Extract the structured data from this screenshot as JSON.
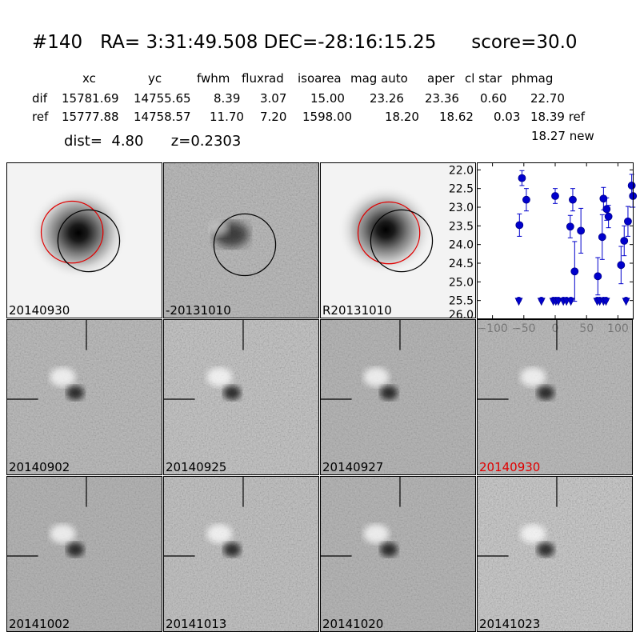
{
  "header": {
    "title": "#140   RA= 3:31:49.508 DEC=-28:16:15.25      score=30.0",
    "columns": [
      "xc",
      "yc",
      "fwhm",
      "fluxrad",
      "isoarea",
      "mag auto",
      "aper",
      "cl star",
      "phmag"
    ],
    "rows": [
      {
        "label": "dif",
        "values": [
          "15781.69",
          "14755.65",
          "8.39",
          "3.07",
          "15.00",
          "23.26",
          "23.36",
          "0.60",
          "22.70"
        ]
      },
      {
        "label": "ref",
        "values": [
          "15777.88",
          "14758.57",
          "11.70",
          "7.20",
          "1598.00",
          "18.20",
          "18.62",
          "0.03",
          "18.39 ref"
        ]
      }
    ],
    "new_mag": "18.27 new",
    "dist_line": "dist=  4.80      z=0.2303"
  },
  "panels": [
    {
      "label": "20140930",
      "type": "galaxy",
      "highlight": false
    },
    {
      "label": "-20131010",
      "type": "diff",
      "highlight": false
    },
    {
      "label": "R20131010",
      "type": "galaxy",
      "highlight": false
    },
    {
      "label": "20140902",
      "type": "stamp",
      "highlight": false
    },
    {
      "label": "20140925",
      "type": "stamp",
      "highlight": false
    },
    {
      "label": "20140927",
      "type": "stamp",
      "highlight": false
    },
    {
      "label": "20140930",
      "type": "stamp",
      "highlight": true
    },
    {
      "label": "20141002",
      "type": "stamp",
      "highlight": false
    },
    {
      "label": "20141013",
      "type": "stamp",
      "highlight": false
    },
    {
      "label": "20141020",
      "type": "stamp",
      "highlight": false
    },
    {
      "label": "20141023",
      "type": "stamp",
      "highlight": false
    }
  ],
  "chart_data": {
    "type": "scatter",
    "title": "",
    "xlabel": "",
    "ylabel": "",
    "xlim": [
      -125,
      125
    ],
    "ylim": [
      26.0,
      21.8
    ],
    "y_inverted": true,
    "xticks": [
      -100,
      -50,
      0,
      50,
      100
    ],
    "xtick_labels": [
      "−100",
      "−50",
      "0",
      "50",
      "100"
    ],
    "yticks": [
      22.0,
      22.5,
      23.0,
      23.5,
      24.0,
      24.5,
      25.0,
      25.5,
      26.0
    ],
    "ytick_labels": [
      "22.0",
      "22.5",
      "23.0",
      "23.5",
      "24.0",
      "24.5",
      "25.0",
      "25.5",
      "26.0"
    ],
    "color": "#0000cc",
    "detections": [
      {
        "x": -57,
        "y": 23.48,
        "err": 0.3
      },
      {
        "x": -53,
        "y": 22.22,
        "err": 0.2
      },
      {
        "x": -46,
        "y": 22.8,
        "err": 0.3
      },
      {
        "x": 0,
        "y": 22.7,
        "err": 0.2
      },
      {
        "x": 24,
        "y": 23.52,
        "err": 0.3
      },
      {
        "x": 28,
        "y": 22.8,
        "err": 0.3
      },
      {
        "x": 31,
        "y": 24.72,
        "err": 0.8
      },
      {
        "x": 41,
        "y": 23.63,
        "err": 0.6
      },
      {
        "x": 68,
        "y": 24.85,
        "err": 0.5
      },
      {
        "x": 75,
        "y": 23.8,
        "err": 0.6
      },
      {
        "x": 77,
        "y": 22.77,
        "err": 0.3
      },
      {
        "x": 82,
        "y": 23.05,
        "err": 0.3
      },
      {
        "x": 85,
        "y": 23.25,
        "err": 0.3
      },
      {
        "x": 105,
        "y": 24.55,
        "err": 0.5
      },
      {
        "x": 110,
        "y": 23.9,
        "err": 0.4
      },
      {
        "x": 116,
        "y": 23.38,
        "err": 0.4
      },
      {
        "x": 122,
        "y": 22.42,
        "err": 0.3
      },
      {
        "x": 124,
        "y": 22.7,
        "err": 0.3
      }
    ],
    "upper_limits": [
      {
        "x": -58,
        "y": 25.52
      },
      {
        "x": -22,
        "y": 25.52
      },
      {
        "x": -3,
        "y": 25.52
      },
      {
        "x": 1,
        "y": 25.52
      },
      {
        "x": 5,
        "y": 25.52
      },
      {
        "x": 13,
        "y": 25.52
      },
      {
        "x": 18,
        "y": 25.52
      },
      {
        "x": 25,
        "y": 25.52
      },
      {
        "x": 67,
        "y": 25.52
      },
      {
        "x": 71,
        "y": 25.52
      },
      {
        "x": 77,
        "y": 25.52
      },
      {
        "x": 81,
        "y": 25.52
      },
      {
        "x": 113,
        "y": 25.52
      }
    ]
  }
}
